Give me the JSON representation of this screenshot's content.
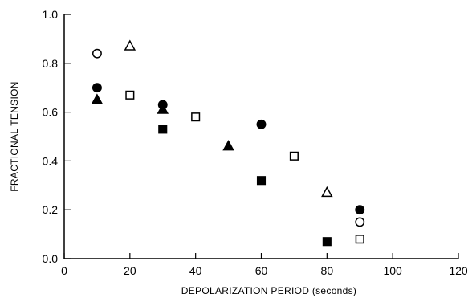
{
  "chart_data": {
    "type": "scatter",
    "xlabel": "DEPOLARIZATION PERIOD (seconds)",
    "ylabel": "FRACTIONAL TENSION",
    "xlim": [
      0,
      120
    ],
    "ylim": [
      0,
      1.0
    ],
    "x_ticks": [
      "0",
      "20",
      "40",
      "60",
      "80",
      "100",
      "120"
    ],
    "y_ticks": [
      "0.0",
      "0.2",
      "0.4",
      "0.6",
      "0.8",
      "1.0"
    ],
    "grid": false,
    "legend": "none",
    "series": [
      {
        "marker": "circle-open",
        "points": [
          [
            10,
            0.84
          ],
          [
            90,
            0.15
          ]
        ]
      },
      {
        "marker": "circle-filled",
        "points": [
          [
            10,
            0.7
          ],
          [
            30,
            0.63
          ],
          [
            60,
            0.55
          ],
          [
            90,
            0.2
          ]
        ]
      },
      {
        "marker": "triangle-open",
        "points": [
          [
            20,
            0.87
          ],
          [
            80,
            0.27
          ]
        ]
      },
      {
        "marker": "triangle-filled",
        "points": [
          [
            10,
            0.65
          ],
          [
            30,
            0.61
          ],
          [
            50,
            0.46
          ]
        ]
      },
      {
        "marker": "square-open",
        "points": [
          [
            20,
            0.67
          ],
          [
            40,
            0.58
          ],
          [
            70,
            0.42
          ],
          [
            90,
            0.08
          ]
        ]
      },
      {
        "marker": "square-filled",
        "points": [
          [
            30,
            0.53
          ],
          [
            60,
            0.32
          ],
          [
            80,
            0.07
          ]
        ]
      }
    ]
  }
}
